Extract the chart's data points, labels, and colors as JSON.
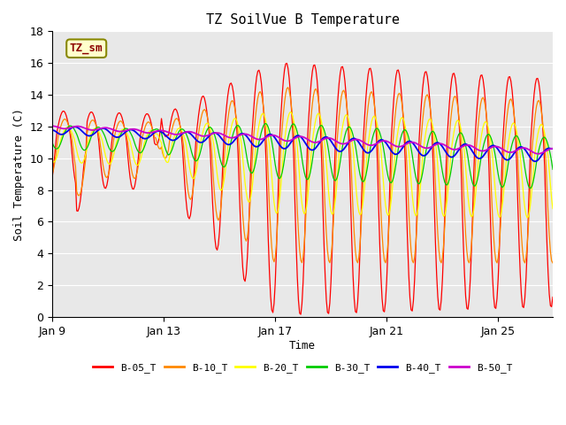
{
  "title": "TZ SoilVue B Temperature",
  "xlabel": "Time",
  "ylabel": "Soil Temperature (C)",
  "ylim": [
    0,
    18
  ],
  "yticks": [
    0,
    2,
    4,
    6,
    8,
    10,
    12,
    14,
    16,
    18
  ],
  "x_tick_labels": [
    "Jan 9",
    "Jan 13",
    "Jan 17",
    "Jan 21",
    "Jan 25"
  ],
  "x_tick_positions": [
    0,
    96,
    192,
    288,
    384
  ],
  "total_points": 432,
  "series_colors": {
    "B-05_T": "#ff0000",
    "B-10_T": "#ff8800",
    "B-20_T": "#ffff00",
    "B-30_T": "#00cc00",
    "B-40_T": "#0000ee",
    "B-50_T": "#cc00cc"
  },
  "legend_label": "TZ_sm",
  "title_fontsize": 11,
  "axis_fontsize": 9,
  "tick_fontsize": 9
}
